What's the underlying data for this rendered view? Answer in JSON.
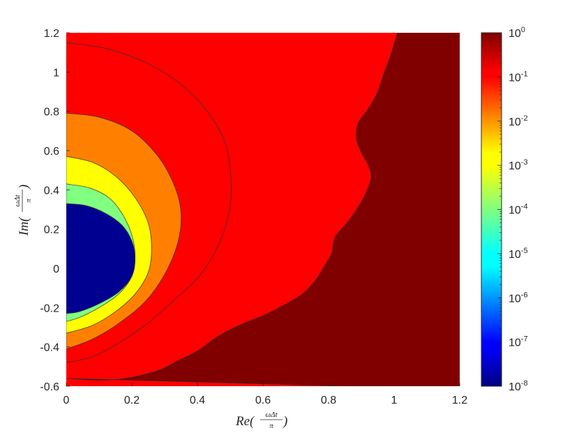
{
  "chart_data": {
    "type": "filled-contour",
    "x": {
      "label_main": "Re(",
      "label_num": "ωΔt",
      "label_den": "π",
      "label_close": ")",
      "lim": [
        0,
        1.2
      ],
      "ticks": [
        {
          "v": 0,
          "t": "0"
        },
        {
          "v": 0.2,
          "t": "0.2"
        },
        {
          "v": 0.4,
          "t": "0.4"
        },
        {
          "v": 0.6,
          "t": "0.6"
        },
        {
          "v": 0.8,
          "t": "0.8"
        },
        {
          "v": 1.0,
          "t": "1"
        },
        {
          "v": 1.2,
          "t": "1.2"
        }
      ]
    },
    "y": {
      "label_main": "Im(",
      "label_num": "ωΔt",
      "label_den": "π",
      "label_close": ")",
      "lim": [
        -0.6,
        1.2
      ],
      "ticks": [
        {
          "v": -0.6,
          "t": "-0.6"
        },
        {
          "v": -0.4,
          "t": "-0.4"
        },
        {
          "v": -0.2,
          "t": "-0.2"
        },
        {
          "v": 0,
          "t": "0"
        },
        {
          "v": 0.2,
          "t": "0.2"
        },
        {
          "v": 0.4,
          "t": "0.4"
        },
        {
          "v": 0.6,
          "t": "0.6"
        },
        {
          "v": 0.8,
          "t": "0.8"
        },
        {
          "v": 1.0,
          "t": "1"
        },
        {
          "v": 1.2,
          "t": "1.2"
        }
      ]
    },
    "colorbar": {
      "scale": "log",
      "exp_range": [
        -8,
        0
      ],
      "colormap": "jet",
      "ticks": [
        {
          "exp": 0,
          "base": "10",
          "sup": "0"
        },
        {
          "exp": -1,
          "base": "10",
          "sup": "-1"
        },
        {
          "exp": -2,
          "base": "10",
          "sup": "-2"
        },
        {
          "exp": -3,
          "base": "10",
          "sup": "-3"
        },
        {
          "exp": -4,
          "base": "10",
          "sup": "-4"
        },
        {
          "exp": -5,
          "base": "10",
          "sup": "-5"
        },
        {
          "exp": -6,
          "base": "10",
          "sup": "-6"
        },
        {
          "exp": -7,
          "base": "10",
          "sup": "-7"
        },
        {
          "exp": -8,
          "base": "10",
          "sup": "-8"
        }
      ]
    },
    "regions": [
      {
        "level": "≥ 1e-1",
        "color": "#800000",
        "boundary": [
          [
            1.01,
            1.2
          ],
          [
            0.99,
            1.09
          ],
          [
            0.97,
            1.0
          ],
          [
            0.95,
            0.9
          ],
          [
            0.92,
            0.81
          ],
          [
            0.89,
            0.74
          ],
          [
            0.885,
            0.66
          ],
          [
            0.9,
            0.59
          ],
          [
            0.92,
            0.53
          ],
          [
            0.93,
            0.47
          ],
          [
            0.92,
            0.41
          ],
          [
            0.9,
            0.34
          ],
          [
            0.86,
            0.24
          ],
          [
            0.82,
            0.16
          ],
          [
            0.81,
            0.08
          ],
          [
            0.79,
            0.02
          ],
          [
            0.76,
            -0.06
          ],
          [
            0.72,
            -0.13
          ],
          [
            0.66,
            -0.19
          ],
          [
            0.6,
            -0.24
          ],
          [
            0.54,
            -0.28
          ],
          [
            0.49,
            -0.32
          ],
          [
            0.45,
            -0.36
          ],
          [
            0.4,
            -0.42
          ],
          [
            0.34,
            -0.47
          ],
          [
            0.28,
            -0.52
          ],
          [
            0.18,
            -0.56
          ],
          [
            0.1,
            -0.57
          ],
          [
            0.0,
            -0.56
          ]
        ]
      },
      {
        "level": "1e-2 – 1e-1",
        "color": "#ff0000",
        "boundary": [
          [
            0,
            1.15
          ],
          [
            0.12,
            1.12
          ],
          [
            0.24,
            1.05
          ],
          [
            0.34,
            0.95
          ],
          [
            0.42,
            0.82
          ],
          [
            0.48,
            0.66
          ],
          [
            0.5,
            0.5
          ],
          [
            0.5,
            0.32
          ],
          [
            0.47,
            0.14
          ],
          [
            0.41,
            -0.03
          ],
          [
            0.33,
            -0.16
          ],
          [
            0.24,
            -0.29
          ],
          [
            0.16,
            -0.38
          ],
          [
            0.08,
            -0.45
          ],
          [
            0.0,
            -0.48
          ]
        ]
      },
      {
        "level": "1e-3 – 1e-2",
        "color": "#ff8000",
        "boundary": [
          [
            0,
            0.79
          ],
          [
            0.1,
            0.77
          ],
          [
            0.2,
            0.7
          ],
          [
            0.28,
            0.57
          ],
          [
            0.33,
            0.42
          ],
          [
            0.35,
            0.28
          ],
          [
            0.34,
            0.13
          ],
          [
            0.3,
            -0.03
          ],
          [
            0.24,
            -0.17
          ],
          [
            0.16,
            -0.28
          ],
          [
            0.08,
            -0.36
          ],
          [
            0.0,
            -0.41
          ]
        ]
      },
      {
        "level": "1e-4 – 1e-3",
        "color": "#ffff00",
        "boundary": [
          [
            0,
            0.57
          ],
          [
            0.08,
            0.54
          ],
          [
            0.15,
            0.47
          ],
          [
            0.21,
            0.36
          ],
          [
            0.25,
            0.23
          ],
          [
            0.26,
            0.1
          ],
          [
            0.25,
            -0.02
          ],
          [
            0.21,
            -0.13
          ],
          [
            0.15,
            -0.22
          ],
          [
            0.08,
            -0.29
          ],
          [
            0.0,
            -0.33
          ]
        ]
      },
      {
        "level": "1e-5 – 1e-4",
        "color": "#80ff80",
        "boundary": [
          [
            0,
            0.43
          ],
          [
            0.07,
            0.41
          ],
          [
            0.13,
            0.36
          ],
          [
            0.17,
            0.28
          ],
          [
            0.2,
            0.17
          ],
          [
            0.21,
            0.06
          ],
          [
            0.2,
            -0.04
          ],
          [
            0.16,
            -0.13
          ],
          [
            0.1,
            -0.2
          ],
          [
            0.04,
            -0.25
          ],
          [
            0.0,
            -0.27
          ]
        ]
      },
      {
        "level": "≤ 1e-5",
        "color": "#000090",
        "boundary": [
          [
            0,
            0.33
          ],
          [
            0.06,
            0.32
          ],
          [
            0.12,
            0.28
          ],
          [
            0.17,
            0.22
          ],
          [
            0.2,
            0.14
          ],
          [
            0.21,
            0.05
          ],
          [
            0.2,
            -0.04
          ],
          [
            0.16,
            -0.12
          ],
          [
            0.1,
            -0.18
          ],
          [
            0.04,
            -0.22
          ],
          [
            0.0,
            -0.23
          ]
        ]
      }
    ],
    "background_color": "#ff0000",
    "grid": false
  }
}
